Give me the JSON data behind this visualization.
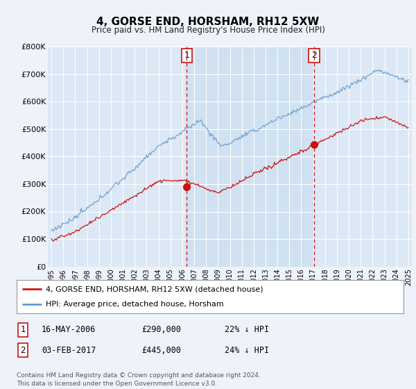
{
  "title": "4, GORSE END, HORSHAM, RH12 5XW",
  "subtitle": "Price paid vs. HM Land Registry's House Price Index (HPI)",
  "background_color": "#eef2fa",
  "plot_bg_color": "#dce8f5",
  "plot_bg_highlight": "#ccdff0",
  "grid_color": "#ffffff",
  "ylim": [
    0,
    800000
  ],
  "yticks": [
    0,
    100000,
    200000,
    300000,
    400000,
    500000,
    600000,
    700000,
    800000
  ],
  "ytick_labels": [
    "£0",
    "£100K",
    "£200K",
    "£300K",
    "£400K",
    "£500K",
    "£600K",
    "£700K",
    "£800K"
  ],
  "hpi_color": "#6699cc",
  "price_color": "#cc1111",
  "marker1_x": 2006.38,
  "marker1_y": 290000,
  "marker2_x": 2017.09,
  "marker2_y": 445000,
  "marker1_label": "1",
  "marker2_label": "2",
  "legend_line1": "4, GORSE END, HORSHAM, RH12 5XW (detached house)",
  "legend_line2": "HPI: Average price, detached house, Horsham",
  "table_row1": [
    "1",
    "16-MAY-2006",
    "£290,000",
    "22% ↓ HPI"
  ],
  "table_row2": [
    "2",
    "03-FEB-2017",
    "£445,000",
    "24% ↓ HPI"
  ],
  "footnote": "Contains HM Land Registry data © Crown copyright and database right 2024.\nThis data is licensed under the Open Government Licence v3.0.",
  "xlim_start": 1994.7,
  "xlim_end": 2025.3
}
